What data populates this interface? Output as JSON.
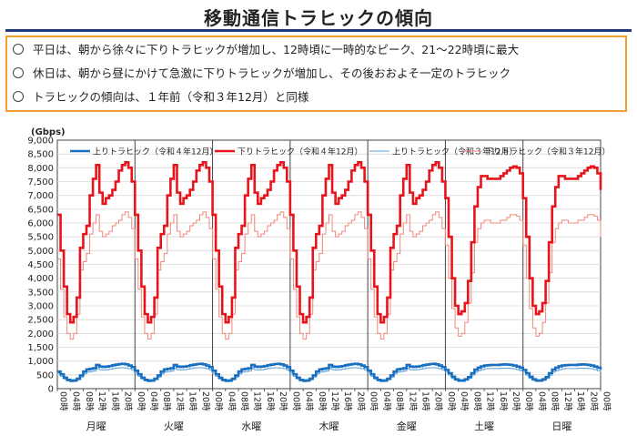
{
  "page": {
    "title": "移動通信トラヒックの傾向",
    "bullets": [
      "平日は、朝から徐々に下りトラヒックが増加し、12時頃に一時的なピーク、21～22時頃に最大",
      "休日は、朝から昼にかけて急激に下りトラヒックが増加し、その後おおよそ一定のトラヒック",
      "トラヒックの傾向は、１年前（令和３年12月）と同様"
    ]
  },
  "chart_data": {
    "type": "line",
    "ylabel": "(Gbps)",
    "ylim": [
      0,
      9000
    ],
    "yticks": [
      "0",
      "500",
      "1,000",
      "1,500",
      "2,000",
      "2,500",
      "3,000",
      "3,500",
      "4,000",
      "4,500",
      "5,000",
      "5,500",
      "6,000",
      "6,500",
      "7,000",
      "7,500",
      "8,000",
      "8,500",
      "9,000"
    ],
    "x_tick_labels": [
      "00時",
      "04時",
      "08時",
      "12時",
      "16時",
      "20時"
    ],
    "days": [
      "月曜",
      "火曜",
      "水曜",
      "木曜",
      "金曜",
      "土曜",
      "日曜"
    ],
    "final_tick_label": "00時",
    "legend": [
      "上りトラヒック（令和４年12月）",
      "下りトラヒック（令和４年12月）",
      "上りトラヒック（令和３年12月）",
      "下りトラヒック（令和３年12月）"
    ],
    "series": [
      {
        "name": "上りトラヒック（令和４年12月）",
        "color": "#1a6fc0",
        "weekday": [
          650,
          520,
          400,
          320,
          290,
          300,
          360,
          480,
          620,
          700,
          720,
          740,
          860,
          800,
          790,
          800,
          820,
          850,
          870,
          890,
          900,
          880,
          840,
          780
        ],
        "weekend": [
          680,
          560,
          430,
          340,
          300,
          300,
          340,
          420,
          560,
          690,
          760,
          810,
          840,
          850,
          860,
          860,
          860,
          870,
          880,
          870,
          860,
          840,
          800,
          760
        ],
        "monday_start": 620,
        "sunday_end": 700
      },
      {
        "name": "下りトラヒック（令和４年12月）",
        "color": "#e8141b",
        "weekday": [
          6300,
          5000,
          3700,
          2700,
          2400,
          2600,
          3300,
          5100,
          5600,
          5900,
          7000,
          7600,
          8100,
          7100,
          6700,
          6900,
          7000,
          7200,
          7500,
          7900,
          8100,
          8200,
          8000,
          7500
        ],
        "weekend": [
          6900,
          5500,
          4000,
          3000,
          2700,
          2800,
          3100,
          3900,
          5300,
          6600,
          7300,
          7700,
          7700,
          7600,
          7600,
          7600,
          7600,
          7700,
          7800,
          7900,
          8000,
          8050,
          8000,
          7800
        ],
        "monday_start": 6300,
        "sunday_end": 7200
      },
      {
        "name": "上りトラヒック（令和３年12月）",
        "color": "#5aa0dc",
        "weekday": [
          560,
          450,
          350,
          280,
          250,
          260,
          320,
          420,
          540,
          600,
          620,
          640,
          730,
          690,
          680,
          690,
          710,
          730,
          750,
          760,
          760,
          750,
          720,
          680
        ],
        "weekend": [
          600,
          490,
          370,
          300,
          260,
          260,
          300,
          370,
          490,
          600,
          650,
          690,
          720,
          730,
          730,
          730,
          730,
          740,
          740,
          740,
          730,
          720,
          690,
          650
        ],
        "monday_start": 560,
        "sunday_end": 600
      },
      {
        "name": "下りトラヒック（令和３年12月）",
        "color": "#f08878",
        "weekday": [
          4700,
          3600,
          2600,
          2000,
          1800,
          2000,
          2700,
          4300,
          4600,
          4900,
          5600,
          6000,
          6300,
          5700,
          5500,
          5600,
          5700,
          5900,
          6000,
          6100,
          6300,
          6400,
          6200,
          5800
        ],
        "weekend": [
          5200,
          4000,
          2900,
          2200,
          1900,
          2000,
          2400,
          3100,
          4200,
          5300,
          5800,
          6000,
          6100,
          6100,
          6000,
          6000,
          6000,
          6100,
          6100,
          6200,
          6300,
          6300,
          6250,
          6100
        ],
        "monday_start": 4700,
        "sunday_end": 5500
      }
    ]
  }
}
